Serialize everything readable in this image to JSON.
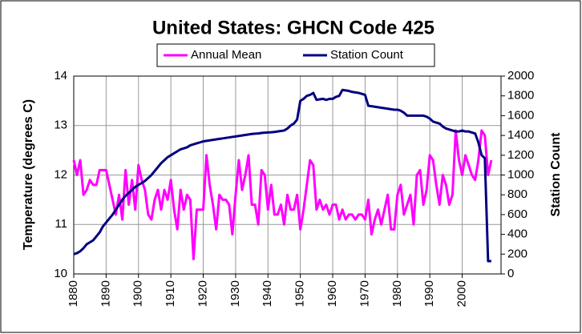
{
  "chart_data": {
    "type": "line",
    "title": "United States: GHCN Code 425",
    "ylabel": "Temperature (degrees C)",
    "y2label": "Station Count",
    "x": [
      1880,
      1881,
      1882,
      1883,
      1884,
      1885,
      1886,
      1887,
      1888,
      1889,
      1890,
      1891,
      1892,
      1893,
      1894,
      1895,
      1896,
      1897,
      1898,
      1899,
      1900,
      1901,
      1902,
      1903,
      1904,
      1905,
      1906,
      1907,
      1908,
      1909,
      1910,
      1911,
      1912,
      1913,
      1914,
      1915,
      1916,
      1917,
      1918,
      1919,
      1920,
      1921,
      1922,
      1923,
      1924,
      1925,
      1926,
      1927,
      1928,
      1929,
      1930,
      1931,
      1932,
      1933,
      1934,
      1935,
      1936,
      1937,
      1938,
      1939,
      1940,
      1941,
      1942,
      1943,
      1944,
      1945,
      1946,
      1947,
      1948,
      1949,
      1950,
      1951,
      1952,
      1953,
      1954,
      1955,
      1956,
      1957,
      1958,
      1959,
      1960,
      1961,
      1962,
      1963,
      1964,
      1965,
      1966,
      1967,
      1968,
      1969,
      1970,
      1971,
      1972,
      1973,
      1974,
      1975,
      1976,
      1977,
      1978,
      1979,
      1980,
      1981,
      1982,
      1983,
      1984,
      1985,
      1986,
      1987,
      1988,
      1989,
      1990,
      1991,
      1992,
      1993,
      1994,
      1995,
      1996,
      1997,
      1998,
      1999,
      2000,
      2001,
      2002,
      2003,
      2004,
      2005,
      2006,
      2007,
      2008,
      2009
    ],
    "series": [
      {
        "name": "Annual Mean",
        "color": "#ff00ff",
        "axis": "y",
        "values": [
          12.3,
          12.0,
          12.3,
          11.6,
          11.7,
          11.9,
          11.8,
          11.8,
          12.1,
          12.1,
          12.1,
          11.8,
          11.5,
          11.2,
          11.6,
          11.1,
          12.1,
          11.4,
          11.9,
          11.3,
          12.2,
          11.9,
          11.7,
          11.2,
          11.1,
          11.5,
          11.7,
          11.3,
          11.7,
          11.5,
          11.9,
          11.3,
          10.9,
          11.7,
          11.3,
          11.6,
          11.5,
          10.3,
          11.3,
          11.3,
          11.3,
          12.4,
          11.8,
          11.4,
          10.9,
          11.6,
          11.5,
          11.5,
          11.4,
          10.8,
          11.6,
          12.3,
          11.7,
          12.0,
          12.4,
          11.4,
          11.4,
          11.0,
          12.1,
          12.0,
          11.3,
          11.8,
          11.2,
          11.2,
          11.4,
          11.0,
          11.6,
          11.3,
          11.3,
          11.6,
          10.9,
          11.3,
          11.8,
          12.3,
          12.2,
          11.3,
          11.5,
          11.3,
          11.4,
          11.2,
          11.4,
          11.4,
          11.1,
          11.3,
          11.1,
          11.2,
          11.2,
          11.1,
          11.2,
          11.2,
          11.1,
          11.5,
          10.8,
          11.1,
          11.3,
          11.0,
          11.3,
          11.6,
          10.9,
          10.9,
          11.6,
          11.8,
          11.2,
          11.4,
          11.6,
          11.0,
          12.0,
          12.1,
          11.4,
          11.7,
          12.4,
          12.3,
          11.8,
          11.4,
          12.0,
          11.8,
          11.4,
          11.6,
          12.9,
          12.3,
          12.0,
          12.4,
          12.2,
          12.0,
          11.9,
          12.3,
          12.9,
          12.8,
          12.0,
          12.3
        ]
      },
      {
        "name": "Station Count",
        "color": "#000080",
        "axis": "y2",
        "values": [
          200,
          210,
          230,
          260,
          300,
          320,
          340,
          380,
          420,
          480,
          520,
          560,
          600,
          650,
          700,
          750,
          790,
          820,
          850,
          880,
          900,
          920,
          940,
          970,
          1000,
          1040,
          1080,
          1120,
          1150,
          1180,
          1200,
          1220,
          1240,
          1260,
          1270,
          1280,
          1300,
          1310,
          1320,
          1330,
          1340,
          1345,
          1350,
          1355,
          1360,
          1365,
          1370,
          1375,
          1380,
          1385,
          1390,
          1395,
          1400,
          1405,
          1410,
          1415,
          1418,
          1420,
          1425,
          1428,
          1430,
          1432,
          1435,
          1440,
          1445,
          1450,
          1470,
          1500,
          1520,
          1560,
          1750,
          1770,
          1800,
          1810,
          1830,
          1760,
          1765,
          1770,
          1760,
          1770,
          1770,
          1790,
          1800,
          1860,
          1855,
          1850,
          1840,
          1835,
          1830,
          1820,
          1810,
          1700,
          1695,
          1690,
          1685,
          1680,
          1675,
          1670,
          1665,
          1660,
          1660,
          1650,
          1630,
          1600,
          1600,
          1600,
          1600,
          1600,
          1600,
          1590,
          1570,
          1540,
          1530,
          1520,
          1490,
          1470,
          1460,
          1450,
          1440,
          1440,
          1450,
          1440,
          1440,
          1430,
          1420,
          1330,
          1200,
          1170,
          130,
          130
        ]
      }
    ],
    "xlim": [
      1880,
      2012
    ],
    "xticks": [
      1880,
      1890,
      1900,
      1910,
      1920,
      1930,
      1940,
      1950,
      1960,
      1970,
      1980,
      1990,
      2000
    ],
    "ylim": [
      10,
      14
    ],
    "yticks": [
      10,
      11,
      12,
      13,
      14
    ],
    "y2lim": [
      0,
      2000
    ],
    "y2ticks": [
      0,
      200,
      400,
      600,
      800,
      1000,
      1200,
      1400,
      1600,
      1800,
      2000
    ],
    "grid": true,
    "legend": "top"
  }
}
